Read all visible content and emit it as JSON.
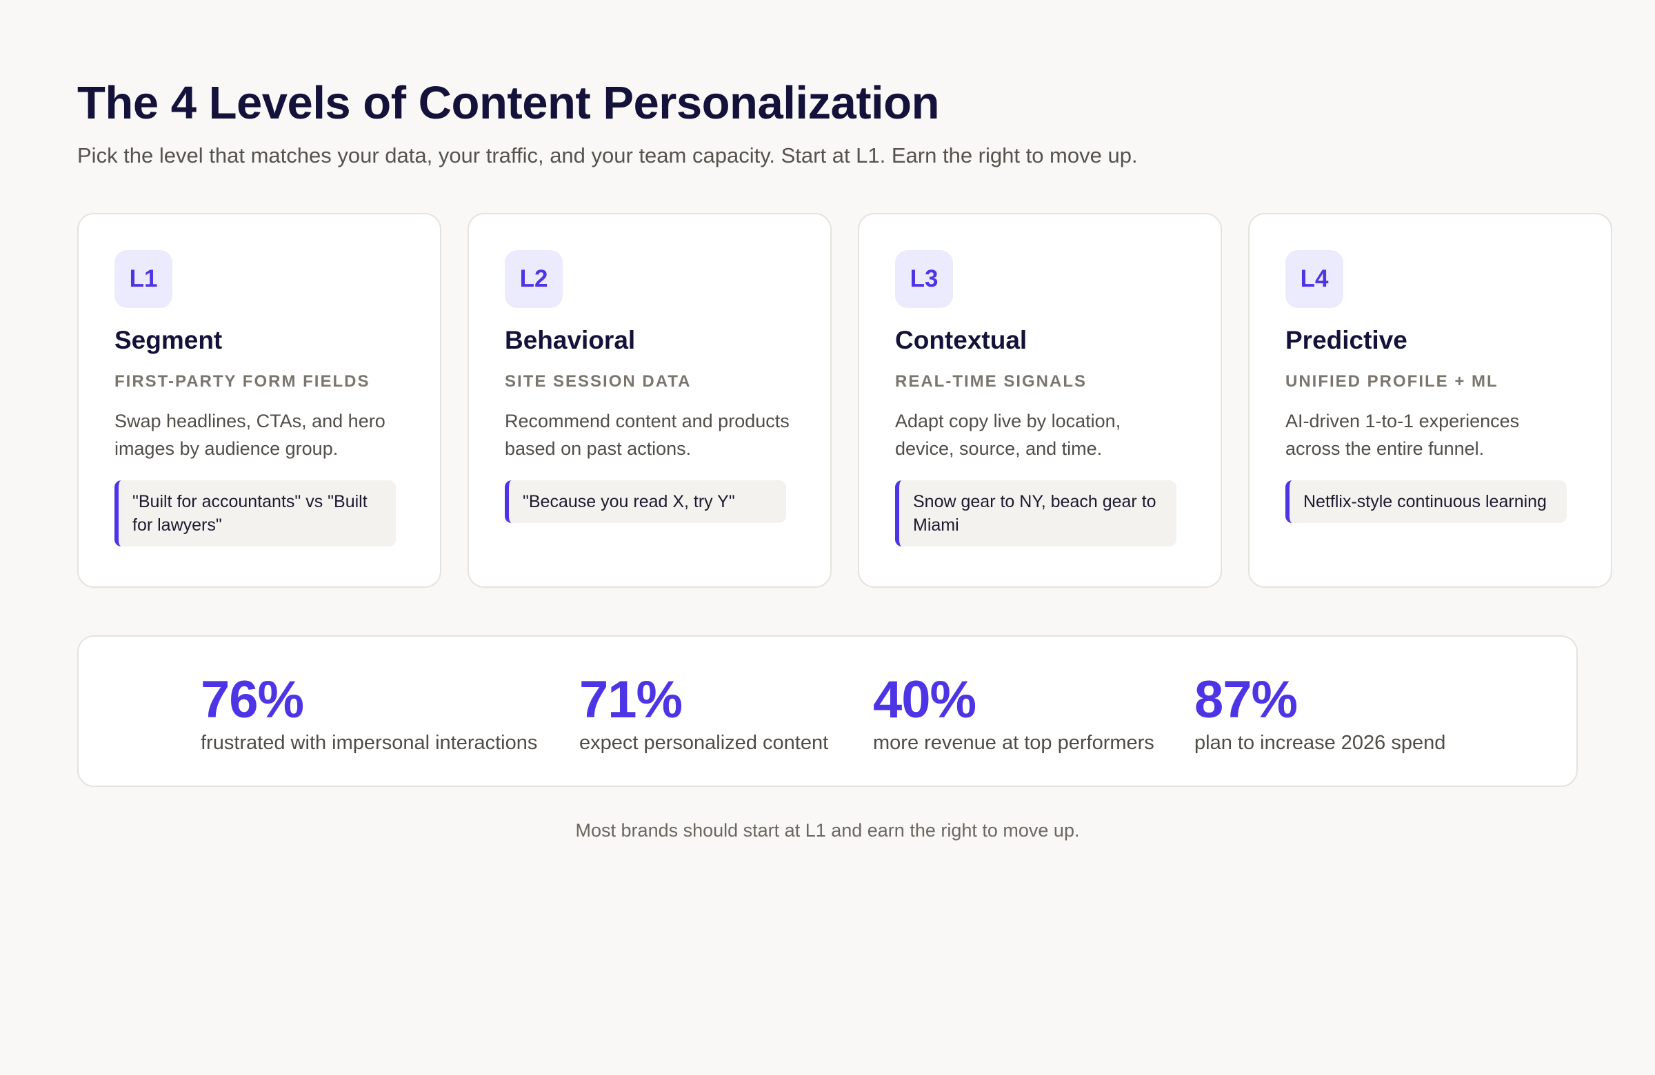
{
  "header": {
    "title": "The 4 Levels of Content Personalization",
    "subtitle": "Pick the level that matches your data, your traffic, and your team capacity. Start at L1. Earn the right to move up."
  },
  "levels": [
    {
      "badge": "L1",
      "title": "Segment",
      "subtitle": "FIRST-PARTY FORM FIELDS",
      "description": "Swap headlines, CTAs, and hero images by audience group.",
      "example": "\"Built for accountants\" vs \"Built for lawyers\""
    },
    {
      "badge": "L2",
      "title": "Behavioral",
      "subtitle": "SITE SESSION DATA",
      "description": "Recommend content and products based on past actions.",
      "example": "\"Because you read X, try Y\""
    },
    {
      "badge": "L3",
      "title": "Contextual",
      "subtitle": "REAL-TIME SIGNALS",
      "description": "Adapt copy live by location, device, source, and time.",
      "example": "Snow gear to NY, beach gear to Miami"
    },
    {
      "badge": "L4",
      "title": "Predictive",
      "subtitle": "UNIFIED PROFILE + ML",
      "description": "AI-driven 1-to-1 experiences across the entire funnel.",
      "example": "Netflix-style continuous learning"
    }
  ],
  "stats": [
    {
      "value": "76%",
      "label": "frustrated with impersonal interactions"
    },
    {
      "value": "71%",
      "label": "expect personalized content"
    },
    {
      "value": "40%",
      "label": "more revenue at top performers"
    },
    {
      "value": "87%",
      "label": "plan to increase 2026 spend"
    }
  ],
  "footer": {
    "note": "Most brands should start at L1 and earn the right to move up."
  },
  "colors": {
    "accent": "#4d35e6",
    "badge_bg": "#ecebfd",
    "title": "#14113a",
    "background": "#f9f8f6"
  }
}
